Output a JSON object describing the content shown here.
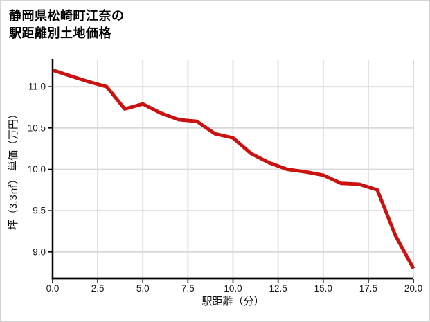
{
  "header": {
    "title_lines": [
      "静岡県松崎町江奈の",
      "駅距離別土地価格"
    ]
  },
  "chart_data": {
    "type": "line",
    "title": "静岡県松崎町江奈の駅距離別土地価格",
    "xlabel": "駅距離（分）",
    "ylabel": "坪（3.3㎡） 単価（万円）",
    "x": [
      0,
      1,
      2,
      3,
      4,
      5,
      6,
      7,
      8,
      9,
      10,
      11,
      12,
      13,
      14,
      15,
      16,
      17,
      18,
      19,
      20
    ],
    "y": [
      11.2,
      11.13,
      11.06,
      11.0,
      10.73,
      10.79,
      10.68,
      10.6,
      10.58,
      10.43,
      10.38,
      10.19,
      10.08,
      10.0,
      9.97,
      9.93,
      9.83,
      9.82,
      9.75,
      9.2,
      8.8
    ],
    "xticks": [
      0.0,
      2.5,
      5.0,
      7.5,
      10.0,
      12.5,
      15.0,
      17.5,
      20.0
    ],
    "xtick_labels": [
      "0.0",
      "2.5",
      "5.0",
      "7.5",
      "10.0",
      "12.5",
      "15.0",
      "17.5",
      "20.0"
    ],
    "yticks": [
      9.0,
      9.5,
      10.0,
      10.5,
      11.0
    ],
    "ytick_labels": [
      "9.0",
      "9.5",
      "10.0",
      "10.5",
      "11.0"
    ],
    "xlim": [
      0,
      20
    ],
    "ylim": [
      8.68,
      11.32
    ],
    "grid": true,
    "legend": false,
    "colors": {
      "line": "#cc1111",
      "grid": "#d9d9d9",
      "axis": "#000000",
      "tick_text": "#1a1a1a",
      "label_text": "#111111",
      "card_border": "#d4d4d4",
      "background": "#ffffff"
    }
  }
}
